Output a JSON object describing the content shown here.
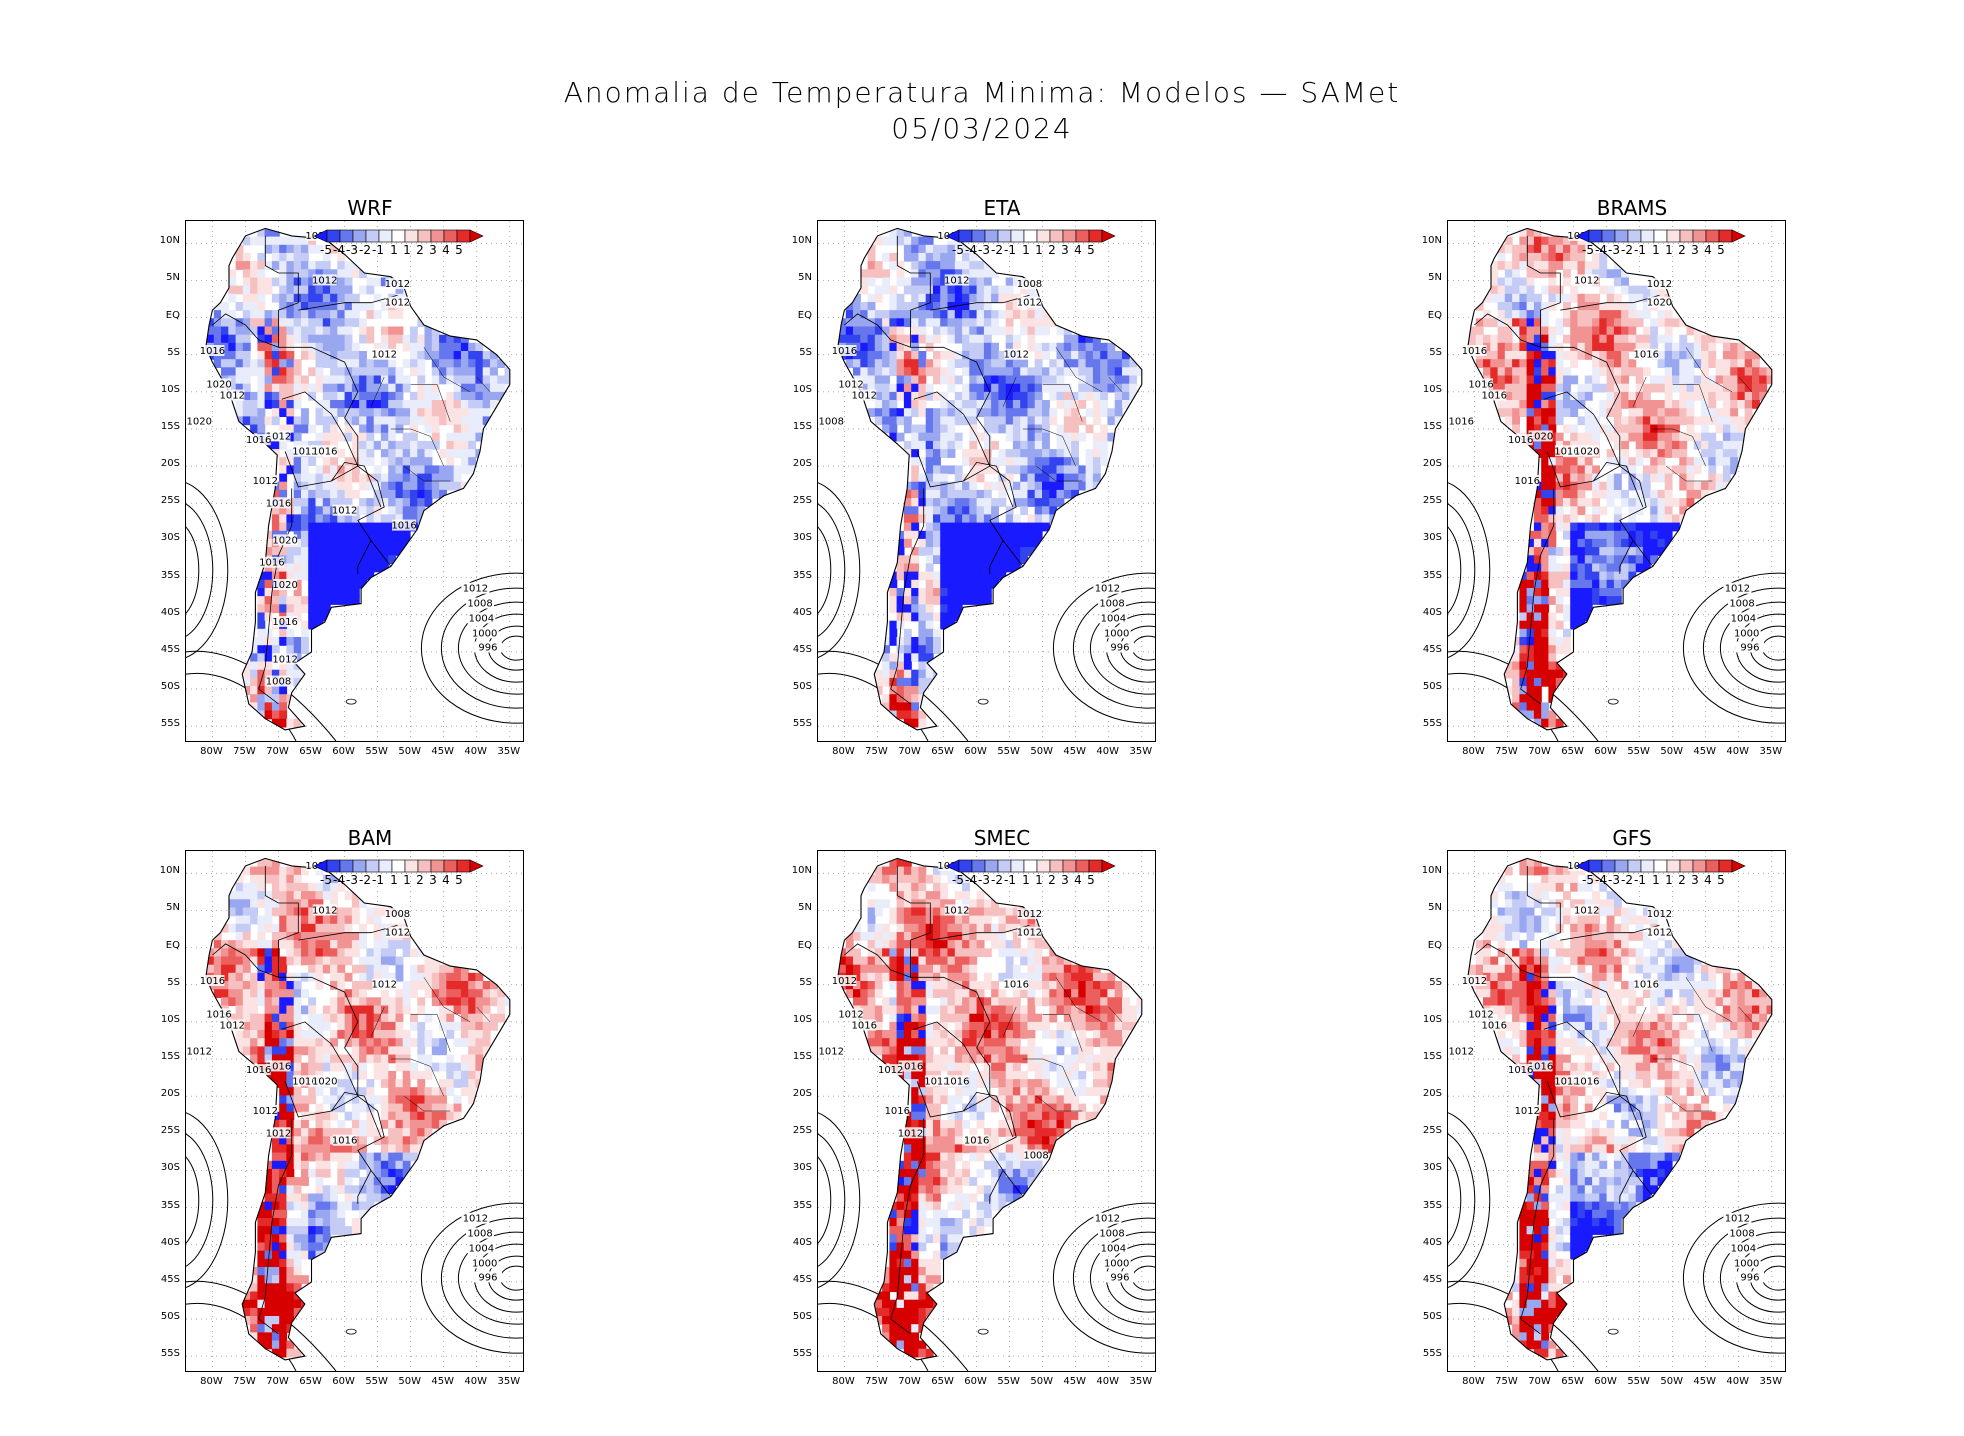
{
  "title_line1": "Anomalia de Temperatura Minima: Modelos — SAMet",
  "title_line2": "05/03/2024",
  "panels": [
    {
      "name": "WRF",
      "warm": 0.25,
      "cold_south": 0.95,
      "isobars_land": [
        "1012",
        "1012",
        "1012",
        "1012",
        "1012",
        "1016",
        "1020",
        "1012",
        "1020",
        "1012",
        "1016",
        "1012",
        "1016",
        "1012",
        "1012",
        "1016",
        "1016",
        "1020",
        "1016",
        "1020",
        "1016",
        "1012",
        "1008"
      ],
      "isobars_ocean": [
        "1012",
        "1008",
        "1004",
        "1000",
        "996"
      ]
    },
    {
      "name": "ETA",
      "warm": 0.2,
      "cold_south": 0.95,
      "isobars_land": [
        "1008",
        "1012",
        "1008",
        "1012",
        "1012",
        "1016",
        "1012",
        "1012",
        "1008"
      ],
      "isobars_ocean": [
        "1012",
        "1008",
        "1004",
        "1000",
        "996"
      ]
    },
    {
      "name": "BRAMS",
      "warm": 0.65,
      "cold_south": 0.8,
      "isobars_land": [
        "1016",
        "1012",
        "1012",
        "1020",
        "1016",
        "1016",
        "1016",
        "1016",
        "1016",
        "1020",
        "1016",
        "1016",
        "1020",
        "1016"
      ],
      "isobars_ocean": [
        "1012",
        "1008",
        "1004",
        "1000",
        "996"
      ]
    },
    {
      "name": "BAM",
      "warm": 0.7,
      "cold_south": 0.35,
      "isobars_land": [
        "1012",
        "1012",
        "1008",
        "1012",
        "1012",
        "1016",
        "1016",
        "1012",
        "1012",
        "1016",
        "1016",
        "1016",
        "1020",
        "1012",
        "1016",
        "1012"
      ],
      "isobars_ocean": [
        "1012",
        "1008",
        "1004",
        "1000",
        "996"
      ]
    },
    {
      "name": "SMEC",
      "warm": 0.8,
      "cold_south": 0.35,
      "isobars_land": [
        "1012",
        "1012",
        "1012",
        "1012",
        "1016",
        "1012",
        "1012",
        "1016",
        "1012",
        "1016",
        "1012",
        "1012",
        "1016",
        "1016",
        "1016",
        "1012",
        "1008"
      ],
      "isobars_ocean": [
        "1012",
        "1008",
        "1004",
        "1000",
        "996"
      ]
    },
    {
      "name": "GFS",
      "warm": 0.6,
      "cold_south": 0.6,
      "isobars_land": [
        "1012",
        "1012",
        "1012",
        "1012",
        "1016",
        "1012",
        "1012",
        "1016",
        "1012",
        "1016",
        "1016",
        "1012",
        "1016",
        "1012"
      ],
      "isobars_ocean": [
        "1012",
        "1008",
        "1004",
        "1000",
        "996"
      ]
    }
  ],
  "y_ticks": [
    "10N",
    "5N",
    "EQ",
    "5S",
    "10S",
    "15S",
    "20S",
    "25S",
    "30S",
    "35S",
    "40S",
    "45S",
    "50S",
    "55S"
  ],
  "x_ticks": [
    "80W",
    "75W",
    "70W",
    "65W",
    "60W",
    "55W",
    "50W",
    "45W",
    "40W",
    "35W"
  ],
  "colorbar": {
    "labels": [
      "-5",
      "-4",
      "-3",
      "-2",
      "-1",
      "1",
      "1",
      "2",
      "3",
      "4",
      "5"
    ],
    "colors": [
      "#1a1aff",
      "#3344ee",
      "#6677ee",
      "#99a6f0",
      "#c4ccf6",
      "#e8ecfb",
      "#ffffff",
      "#fbe3e3",
      "#f7c0c0",
      "#f29393",
      "#ec5f5f",
      "#e52a2a",
      "#d60000"
    ]
  },
  "colors": {
    "cold": "#1a1aff",
    "warm": "#e52a2a",
    "frame": "#000000"
  }
}
